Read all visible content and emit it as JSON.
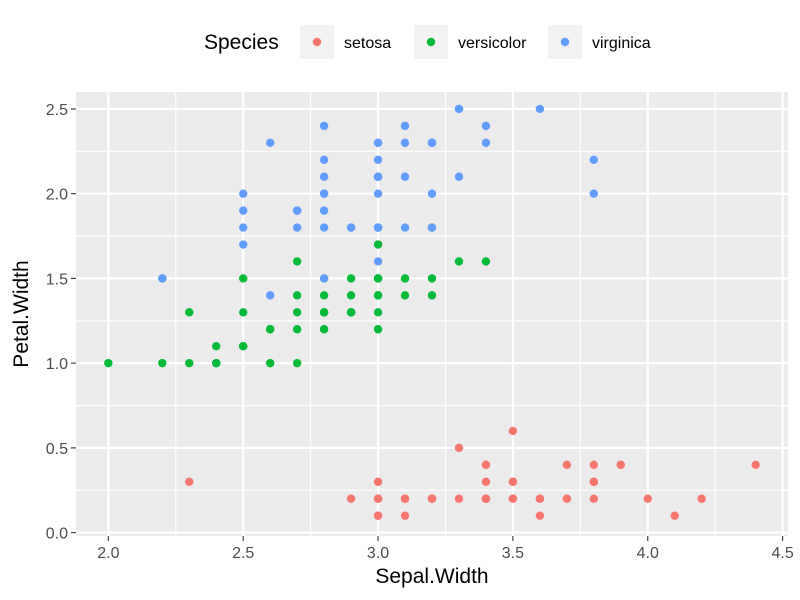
{
  "chart_data": {
    "type": "scatter",
    "title": "",
    "xlabel": "Sepal.Width",
    "ylabel": "Petal.Width",
    "xlim": [
      1.88,
      4.52
    ],
    "ylim": [
      -0.02,
      2.6
    ],
    "x_ticks": [
      "2.0",
      "2.5",
      "3.0",
      "3.5",
      "4.0",
      "4.5"
    ],
    "x_tick_values": [
      2.0,
      2.5,
      3.0,
      3.5,
      4.0,
      4.5
    ],
    "y_ticks": [
      "0.0",
      "0.5",
      "1.0",
      "1.5",
      "2.0",
      "2.5"
    ],
    "y_tick_values": [
      0.0,
      0.5,
      1.0,
      1.5,
      2.0,
      2.5
    ],
    "grid": true,
    "panel_background": "#ebebeb",
    "legend": {
      "title": "Species",
      "position": "top"
    },
    "series": [
      {
        "name": "setosa",
        "color": "#F8766D",
        "points": [
          [
            3.5,
            0.2
          ],
          [
            3.0,
            0.2
          ],
          [
            3.2,
            0.2
          ],
          [
            3.1,
            0.2
          ],
          [
            3.6,
            0.2
          ],
          [
            3.9,
            0.4
          ],
          [
            3.4,
            0.3
          ],
          [
            3.4,
            0.2
          ],
          [
            2.9,
            0.2
          ],
          [
            3.1,
            0.1
          ],
          [
            3.7,
            0.2
          ],
          [
            3.4,
            0.2
          ],
          [
            3.0,
            0.1
          ],
          [
            3.0,
            0.1
          ],
          [
            4.0,
            0.2
          ],
          [
            4.4,
            0.4
          ],
          [
            3.9,
            0.4
          ],
          [
            3.5,
            0.3
          ],
          [
            3.8,
            0.3
          ],
          [
            3.8,
            0.3
          ],
          [
            3.4,
            0.2
          ],
          [
            3.7,
            0.4
          ],
          [
            3.6,
            0.2
          ],
          [
            3.3,
            0.5
          ],
          [
            3.4,
            0.2
          ],
          [
            3.0,
            0.2
          ],
          [
            3.4,
            0.4
          ],
          [
            3.5,
            0.2
          ],
          [
            3.4,
            0.2
          ],
          [
            3.2,
            0.2
          ],
          [
            3.1,
            0.2
          ],
          [
            3.4,
            0.4
          ],
          [
            4.1,
            0.1
          ],
          [
            4.2,
            0.2
          ],
          [
            3.1,
            0.2
          ],
          [
            3.2,
            0.2
          ],
          [
            3.5,
            0.2
          ],
          [
            3.6,
            0.1
          ],
          [
            3.0,
            0.2
          ],
          [
            3.4,
            0.2
          ],
          [
            3.5,
            0.3
          ],
          [
            2.3,
            0.3
          ],
          [
            3.2,
            0.2
          ],
          [
            3.5,
            0.6
          ],
          [
            3.8,
            0.4
          ],
          [
            3.0,
            0.3
          ],
          [
            3.8,
            0.2
          ],
          [
            3.2,
            0.2
          ],
          [
            3.7,
            0.2
          ],
          [
            3.3,
            0.2
          ]
        ]
      },
      {
        "name": "versicolor",
        "color": "#00BA38",
        "points": [
          [
            3.2,
            1.4
          ],
          [
            3.2,
            1.5
          ],
          [
            3.1,
            1.5
          ],
          [
            2.3,
            1.3
          ],
          [
            2.8,
            1.5
          ],
          [
            2.8,
            1.3
          ],
          [
            3.3,
            1.6
          ],
          [
            2.4,
            1.0
          ],
          [
            2.9,
            1.3
          ],
          [
            2.7,
            1.4
          ],
          [
            2.0,
            1.0
          ],
          [
            3.0,
            1.5
          ],
          [
            2.2,
            1.0
          ],
          [
            2.9,
            1.4
          ],
          [
            2.9,
            1.3
          ],
          [
            3.1,
            1.4
          ],
          [
            3.0,
            1.5
          ],
          [
            2.7,
            1.0
          ],
          [
            2.2,
            1.5
          ],
          [
            2.5,
            1.1
          ],
          [
            3.2,
            1.8
          ],
          [
            2.8,
            1.3
          ],
          [
            2.5,
            1.5
          ],
          [
            2.8,
            1.2
          ],
          [
            2.9,
            1.3
          ],
          [
            3.0,
            1.4
          ],
          [
            2.8,
            1.4
          ],
          [
            3.0,
            1.7
          ],
          [
            2.9,
            1.5
          ],
          [
            2.6,
            1.0
          ],
          [
            2.4,
            1.1
          ],
          [
            2.4,
            1.0
          ],
          [
            2.7,
            1.2
          ],
          [
            2.7,
            1.6
          ],
          [
            3.0,
            1.5
          ],
          [
            3.4,
            1.6
          ],
          [
            3.1,
            1.5
          ],
          [
            2.3,
            1.3
          ],
          [
            3.0,
            1.3
          ],
          [
            2.5,
            1.3
          ],
          [
            2.6,
            1.2
          ],
          [
            3.0,
            1.4
          ],
          [
            2.6,
            1.2
          ],
          [
            2.3,
            1.0
          ],
          [
            2.7,
            1.3
          ],
          [
            3.0,
            1.2
          ],
          [
            2.9,
            1.3
          ],
          [
            2.9,
            1.3
          ],
          [
            2.5,
            1.1
          ],
          [
            2.8,
            1.3
          ]
        ]
      },
      {
        "name": "virginica",
        "color": "#619CFF",
        "points": [
          [
            3.3,
            2.5
          ],
          [
            2.7,
            1.9
          ],
          [
            3.0,
            2.1
          ],
          [
            2.9,
            1.8
          ],
          [
            3.0,
            2.2
          ],
          [
            3.0,
            2.1
          ],
          [
            2.5,
            1.7
          ],
          [
            2.9,
            1.8
          ],
          [
            2.5,
            1.8
          ],
          [
            3.6,
            2.5
          ],
          [
            3.2,
            2.0
          ],
          [
            2.7,
            1.9
          ],
          [
            3.0,
            2.1
          ],
          [
            2.5,
            2.0
          ],
          [
            2.8,
            2.4
          ],
          [
            3.2,
            2.3
          ],
          [
            3.0,
            1.8
          ],
          [
            3.8,
            2.2
          ],
          [
            2.6,
            2.3
          ],
          [
            2.2,
            1.5
          ],
          [
            3.2,
            2.3
          ],
          [
            2.8,
            2.0
          ],
          [
            2.8,
            2.0
          ],
          [
            2.7,
            1.8
          ],
          [
            3.3,
            2.1
          ],
          [
            3.2,
            1.8
          ],
          [
            2.8,
            1.8
          ],
          [
            3.0,
            1.8
          ],
          [
            2.8,
            2.1
          ],
          [
            3.0,
            1.6
          ],
          [
            2.8,
            1.9
          ],
          [
            3.8,
            2.0
          ],
          [
            2.8,
            2.2
          ],
          [
            2.8,
            1.5
          ],
          [
            2.6,
            1.4
          ],
          [
            3.0,
            2.3
          ],
          [
            3.4,
            2.4
          ],
          [
            3.1,
            1.8
          ],
          [
            3.0,
            1.8
          ],
          [
            3.1,
            2.1
          ],
          [
            3.1,
            2.4
          ],
          [
            3.1,
            2.3
          ],
          [
            2.7,
            1.9
          ],
          [
            3.2,
            2.3
          ],
          [
            3.3,
            2.5
          ],
          [
            3.0,
            2.3
          ],
          [
            2.5,
            1.9
          ],
          [
            3.0,
            2.0
          ],
          [
            3.4,
            2.3
          ],
          [
            3.0,
            1.8
          ]
        ]
      }
    ]
  }
}
